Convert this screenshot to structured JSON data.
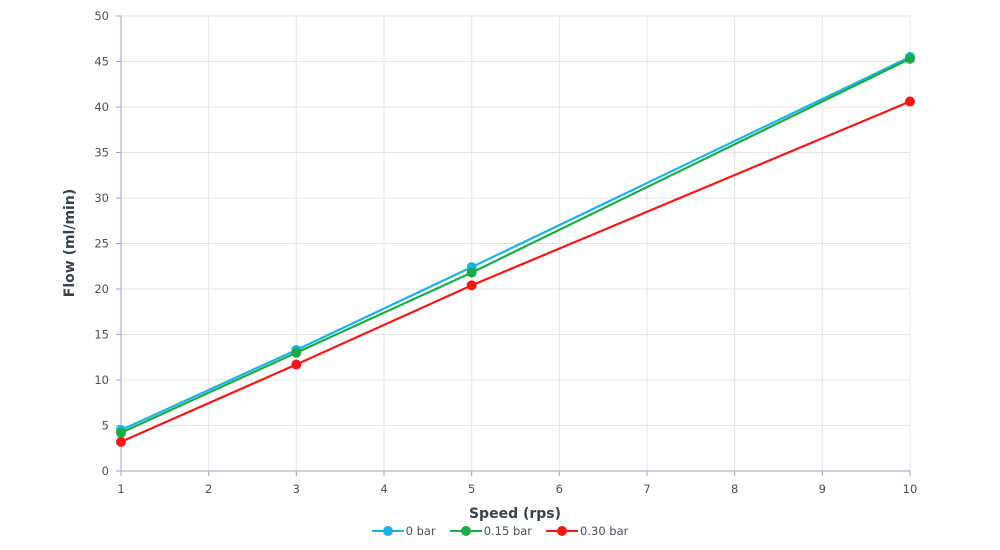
{
  "chart_data": {
    "type": "line",
    "title": "",
    "xlabel": "Speed (rps)",
    "ylabel": "Flow (ml/min)",
    "xlim": [
      1,
      10
    ],
    "ylim": [
      0,
      50
    ],
    "x_ticks": [
      1,
      2,
      3,
      4,
      5,
      6,
      7,
      8,
      9,
      10
    ],
    "y_ticks": [
      0,
      5,
      10,
      15,
      20,
      25,
      30,
      35,
      40,
      45,
      50
    ],
    "grid": true,
    "legend_position": "bottom",
    "x": [
      1,
      3,
      5,
      10
    ],
    "series": [
      {
        "name": "0 bar",
        "color": "#1fb1e6",
        "values": [
          4.5,
          13.3,
          22.4,
          45.5
        ]
      },
      {
        "name": "0.15 bar",
        "color": "#1aab48",
        "values": [
          4.2,
          13.0,
          21.8,
          45.3
        ]
      },
      {
        "name": "0.30 bar",
        "color": "#f21818",
        "values": [
          3.2,
          11.7,
          20.4,
          40.6
        ]
      }
    ]
  },
  "legend": {
    "items": [
      {
        "label": "0 bar",
        "color": "#1fb1e6"
      },
      {
        "label": "0.15 bar",
        "color": "#1aab48"
      },
      {
        "label": "0.30 bar",
        "color": "#f21818"
      }
    ]
  }
}
